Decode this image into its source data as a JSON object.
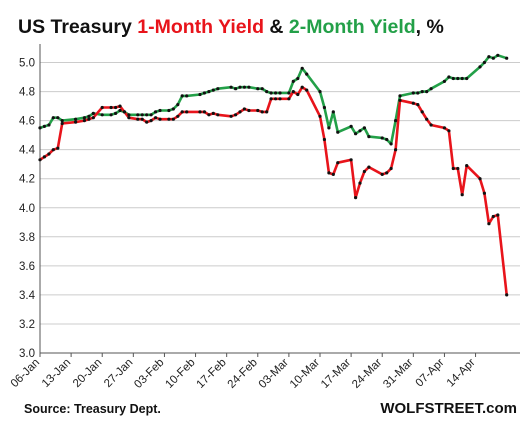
{
  "colors": {
    "one_month": "#e8141b",
    "two_month": "#23a048",
    "marker": "#111111",
    "grid": "#cccccc",
    "axis": "#555555"
  },
  "chart_data": {
    "type": "line",
    "title_parts": [
      {
        "text": "US Treasury ",
        "color": "#111111"
      },
      {
        "text": "1-Month Yield",
        "color": "#e8141b"
      },
      {
        "text": " & ",
        "color": "#111111"
      },
      {
        "text": "2-Month Yield",
        "color": "#23a048"
      },
      {
        "text": ", %",
        "color": "#111111"
      }
    ],
    "xlabel": "",
    "ylabel": "",
    "ylim": [
      3.0,
      5.1
    ],
    "xlim": [
      "2025-01-06",
      "2025-04-24"
    ],
    "y_ticks": [
      "3.0",
      "3.2",
      "3.4",
      "3.6",
      "3.8",
      "4.0",
      "4.2",
      "4.4",
      "4.6",
      "4.8",
      "5.0"
    ],
    "x_ticks": [
      {
        "label": "06-Jan",
        "date": "2025-01-06"
      },
      {
        "label": "13-Jan",
        "date": "2025-01-13"
      },
      {
        "label": "20-Jan",
        "date": "2025-01-20"
      },
      {
        "label": "27-Jan",
        "date": "2025-01-27"
      },
      {
        "label": "03-Feb",
        "date": "2025-02-03"
      },
      {
        "label": "10-Feb",
        "date": "2025-02-10"
      },
      {
        "label": "17-Feb",
        "date": "2025-02-17"
      },
      {
        "label": "24-Feb",
        "date": "2025-02-24"
      },
      {
        "label": "03-Mar",
        "date": "2025-03-03"
      },
      {
        "label": "10-Mar",
        "date": "2025-03-10"
      },
      {
        "label": "17-Mar",
        "date": "2025-03-17"
      },
      {
        "label": "24-Mar",
        "date": "2025-03-24"
      },
      {
        "label": "31-Mar",
        "date": "2025-03-31"
      },
      {
        "label": "07-Apr",
        "date": "2025-04-07"
      },
      {
        "label": "14-Apr",
        "date": "2025-04-14"
      }
    ],
    "grid": "horizontal",
    "legend": "none",
    "series": [
      {
        "key": "one_month",
        "color": "#e8141b",
        "points": [
          [
            "2025-01-06",
            4.33
          ],
          [
            "2025-01-07",
            4.35
          ],
          [
            "2025-01-08",
            4.37
          ],
          [
            "2025-01-09",
            4.4
          ],
          [
            "2025-01-10",
            4.41
          ],
          [
            "2025-01-11",
            4.58
          ],
          [
            "2025-01-14",
            4.59
          ],
          [
            "2025-01-16",
            4.6
          ],
          [
            "2025-01-17",
            4.61
          ],
          [
            "2025-01-18",
            4.62
          ],
          [
            "2025-01-20",
            4.69
          ],
          [
            "2025-01-22",
            4.69
          ],
          [
            "2025-01-23",
            4.69
          ],
          [
            "2025-01-24",
            4.7
          ],
          [
            "2025-01-25",
            4.66
          ],
          [
            "2025-01-26",
            4.62
          ],
          [
            "2025-01-28",
            4.61
          ],
          [
            "2025-01-29",
            4.61
          ],
          [
            "2025-01-30",
            4.59
          ],
          [
            "2025-01-31",
            4.6
          ],
          [
            "2025-02-01",
            4.62
          ],
          [
            "2025-02-02",
            4.61
          ],
          [
            "2025-02-04",
            4.61
          ],
          [
            "2025-02-05",
            4.61
          ],
          [
            "2025-02-06",
            4.63
          ],
          [
            "2025-02-07",
            4.66
          ],
          [
            "2025-02-08",
            4.66
          ],
          [
            "2025-02-11",
            4.66
          ],
          [
            "2025-02-12",
            4.66
          ],
          [
            "2025-02-13",
            4.64
          ],
          [
            "2025-02-14",
            4.65
          ],
          [
            "2025-02-15",
            4.64
          ],
          [
            "2025-02-18",
            4.63
          ],
          [
            "2025-02-19",
            4.64
          ],
          [
            "2025-02-20",
            4.66
          ],
          [
            "2025-02-21",
            4.68
          ],
          [
            "2025-02-22",
            4.67
          ],
          [
            "2025-02-24",
            4.67
          ],
          [
            "2025-02-25",
            4.66
          ],
          [
            "2025-02-26",
            4.66
          ],
          [
            "2025-02-27",
            4.75
          ],
          [
            "2025-02-28",
            4.75
          ],
          [
            "2025-03-01",
            4.75
          ],
          [
            "2025-03-03",
            4.75
          ],
          [
            "2025-03-04",
            4.8
          ],
          [
            "2025-03-05",
            4.78
          ],
          [
            "2025-03-06",
            4.83
          ],
          [
            "2025-03-07",
            4.81
          ],
          [
            "2025-03-10",
            4.63
          ],
          [
            "2025-03-11",
            4.47
          ],
          [
            "2025-03-12",
            4.24
          ],
          [
            "2025-03-13",
            4.23
          ],
          [
            "2025-03-14",
            4.31
          ],
          [
            "2025-03-17",
            4.33
          ],
          [
            "2025-03-18",
            4.07
          ],
          [
            "2025-03-19",
            4.17
          ],
          [
            "2025-03-20",
            4.25
          ],
          [
            "2025-03-21",
            4.28
          ],
          [
            "2025-03-24",
            4.23
          ],
          [
            "2025-03-25",
            4.24
          ],
          [
            "2025-03-26",
            4.27
          ],
          [
            "2025-03-27",
            4.4
          ],
          [
            "2025-03-28",
            4.74
          ],
          [
            "2025-03-31",
            4.72
          ],
          [
            "2025-04-01",
            4.71
          ],
          [
            "2025-04-02",
            4.66
          ],
          [
            "2025-04-03",
            4.61
          ],
          [
            "2025-04-04",
            4.57
          ],
          [
            "2025-04-07",
            4.55
          ],
          [
            "2025-04-08",
            4.53
          ],
          [
            "2025-04-09",
            4.27
          ],
          [
            "2025-04-10",
            4.27
          ],
          [
            "2025-04-11",
            4.09
          ],
          [
            "2025-04-12",
            4.29
          ],
          [
            "2025-04-15",
            4.2
          ],
          [
            "2025-04-16",
            4.1
          ],
          [
            "2025-04-17",
            3.89
          ],
          [
            "2025-04-18",
            3.94
          ],
          [
            "2025-04-19",
            3.95
          ],
          [
            "2025-04-21",
            3.4
          ]
        ]
      },
      {
        "key": "two_month",
        "color": "#23a048",
        "points": [
          [
            "2025-01-06",
            4.55
          ],
          [
            "2025-01-07",
            4.56
          ],
          [
            "2025-01-08",
            4.57
          ],
          [
            "2025-01-09",
            4.62
          ],
          [
            "2025-01-10",
            4.62
          ],
          [
            "2025-01-11",
            4.6
          ],
          [
            "2025-01-14",
            4.61
          ],
          [
            "2025-01-16",
            4.62
          ],
          [
            "2025-01-17",
            4.63
          ],
          [
            "2025-01-18",
            4.65
          ],
          [
            "2025-01-20",
            4.64
          ],
          [
            "2025-01-22",
            4.64
          ],
          [
            "2025-01-23",
            4.65
          ],
          [
            "2025-01-24",
            4.67
          ],
          [
            "2025-01-25",
            4.66
          ],
          [
            "2025-01-26",
            4.64
          ],
          [
            "2025-01-28",
            4.64
          ],
          [
            "2025-01-29",
            4.64
          ],
          [
            "2025-01-30",
            4.64
          ],
          [
            "2025-01-31",
            4.64
          ],
          [
            "2025-02-01",
            4.66
          ],
          [
            "2025-02-02",
            4.67
          ],
          [
            "2025-02-04",
            4.67
          ],
          [
            "2025-02-05",
            4.68
          ],
          [
            "2025-02-06",
            4.71
          ],
          [
            "2025-02-07",
            4.77
          ],
          [
            "2025-02-08",
            4.77
          ],
          [
            "2025-02-11",
            4.78
          ],
          [
            "2025-02-12",
            4.79
          ],
          [
            "2025-02-13",
            4.8
          ],
          [
            "2025-02-14",
            4.81
          ],
          [
            "2025-02-15",
            4.82
          ],
          [
            "2025-02-18",
            4.83
          ],
          [
            "2025-02-19",
            4.82
          ],
          [
            "2025-02-20",
            4.83
          ],
          [
            "2025-02-21",
            4.83
          ],
          [
            "2025-02-22",
            4.83
          ],
          [
            "2025-02-24",
            4.82
          ],
          [
            "2025-02-25",
            4.82
          ],
          [
            "2025-02-26",
            4.8
          ],
          [
            "2025-02-27",
            4.79
          ],
          [
            "2025-02-28",
            4.79
          ],
          [
            "2025-03-01",
            4.79
          ],
          [
            "2025-03-03",
            4.79
          ],
          [
            "2025-03-04",
            4.87
          ],
          [
            "2025-03-05",
            4.89
          ],
          [
            "2025-03-06",
            4.96
          ],
          [
            "2025-03-07",
            4.92
          ],
          [
            "2025-03-10",
            4.8
          ],
          [
            "2025-03-11",
            4.69
          ],
          [
            "2025-03-12",
            4.55
          ],
          [
            "2025-03-13",
            4.66
          ],
          [
            "2025-03-14",
            4.52
          ],
          [
            "2025-03-17",
            4.56
          ],
          [
            "2025-03-18",
            4.51
          ],
          [
            "2025-03-19",
            4.53
          ],
          [
            "2025-03-20",
            4.55
          ],
          [
            "2025-03-21",
            4.49
          ],
          [
            "2025-03-24",
            4.48
          ],
          [
            "2025-03-25",
            4.47
          ],
          [
            "2025-03-26",
            4.44
          ],
          [
            "2025-03-27",
            4.6
          ],
          [
            "2025-03-28",
            4.77
          ],
          [
            "2025-03-31",
            4.79
          ],
          [
            "2025-04-01",
            4.79
          ],
          [
            "2025-04-02",
            4.8
          ],
          [
            "2025-04-03",
            4.8
          ],
          [
            "2025-04-04",
            4.82
          ],
          [
            "2025-04-07",
            4.87
          ],
          [
            "2025-04-08",
            4.9
          ],
          [
            "2025-04-09",
            4.89
          ],
          [
            "2025-04-10",
            4.89
          ],
          [
            "2025-04-11",
            4.89
          ],
          [
            "2025-04-12",
            4.89
          ],
          [
            "2025-04-15",
            4.97
          ],
          [
            "2025-04-16",
            5.0
          ],
          [
            "2025-04-17",
            5.04
          ],
          [
            "2025-04-18",
            5.03
          ],
          [
            "2025-04-19",
            5.05
          ],
          [
            "2025-04-21",
            5.03
          ]
        ]
      }
    ]
  },
  "footer": {
    "source": "Source: Treasury Dept.",
    "brand": "WOLFSTREET.com"
  }
}
